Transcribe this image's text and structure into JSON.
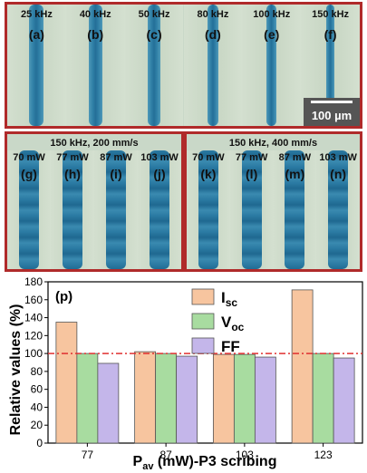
{
  "top_panel": {
    "labels": [
      "25 kHz",
      "40 kHz",
      "50 kHz",
      "80 kHz",
      "100 kHz",
      "150 kHz"
    ],
    "letters": [
      "(a)",
      "(b)",
      "(c)",
      "(d)",
      "(e)",
      "(f)"
    ],
    "scale_bar": "100 µm"
  },
  "mid_left": {
    "title": "150 kHz, 200 mm/s",
    "labels": [
      "70 mW",
      "77 mW",
      "87 mW",
      "103 mW"
    ],
    "letters": [
      "(g)",
      "(h)",
      "(i)",
      "(j)"
    ]
  },
  "mid_right": {
    "title": "150 kHz, 400 mm/s",
    "labels": [
      "70 mW",
      "77 mW",
      "87 mW",
      "103 mW"
    ],
    "letters": [
      "(k)",
      "(l)",
      "(m)",
      "(n)"
    ]
  },
  "colors": {
    "panel_border": "#b02a2a",
    "isc": "#f7c59f",
    "voc": "#a8dca0",
    "ff": "#c4b6ea",
    "reference_line": "#e03030"
  },
  "chart_data": {
    "type": "bar",
    "panel_label": "(p)",
    "categories": [
      "77",
      "87",
      "103",
      "123"
    ],
    "series": [
      {
        "name": "I",
        "subscript": "sc",
        "values": [
          135,
          102,
          99,
          171
        ]
      },
      {
        "name": "V",
        "subscript": "oc",
        "values": [
          100,
          100,
          99,
          100
        ]
      },
      {
        "name": "FF",
        "subscript": "",
        "values": [
          89,
          97,
          96,
          95
        ]
      }
    ],
    "ylabel": "Relative values (%)",
    "xlabel_main": "P",
    "xlabel_sub": "av",
    "xlabel_rest": " (mW)-P3 scribing",
    "ylim": [
      0,
      180
    ],
    "yticks": [
      0,
      20,
      40,
      60,
      80,
      100,
      120,
      140,
      160,
      180
    ],
    "reference_value": 100,
    "legend_position": "top-center",
    "grid": false
  }
}
